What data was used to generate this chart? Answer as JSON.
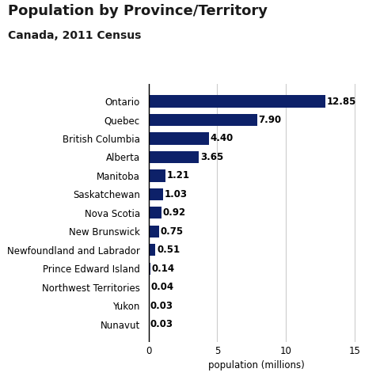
{
  "title": "Population by Province/Territory",
  "subtitle": "Canada, 2011 Census",
  "xlabel": "population (millions)",
  "provinces": [
    "Ontario",
    "Quebec",
    "British Columbia",
    "Alberta",
    "Manitoba",
    "Saskatchewan",
    "Nova Scotia",
    "New Brunswick",
    "Newfoundland and Labrador",
    "Prince Edward Island",
    "Northwest Territories",
    "Yukon",
    "Nunavut"
  ],
  "values": [
    12.85,
    7.9,
    4.4,
    3.65,
    1.21,
    1.03,
    0.92,
    0.75,
    0.51,
    0.14,
    0.04,
    0.03,
    0.03
  ],
  "bar_color": "#0d2169",
  "background_color": "#ffffff",
  "xlim": [
    -0.3,
    16
  ],
  "xticks": [
    0,
    5,
    10,
    15
  ],
  "grid_color": "#cccccc",
  "title_fontsize": 13,
  "subtitle_fontsize": 10,
  "label_fontsize": 8.5,
  "value_fontsize": 8.5
}
